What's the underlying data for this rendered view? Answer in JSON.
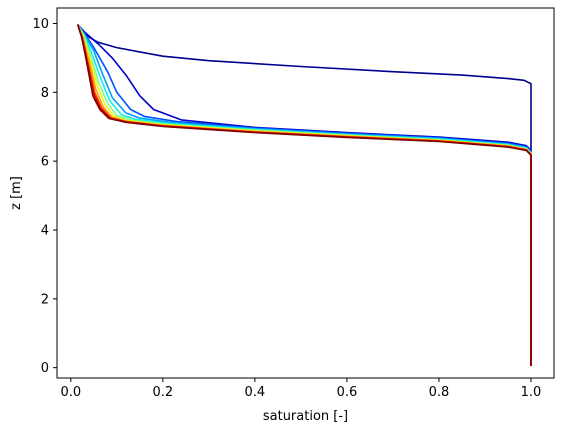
{
  "chart_data": {
    "type": "line",
    "title": "",
    "xlabel": "saturation [-]",
    "ylabel": "z [m]",
    "xlim": [
      -0.03,
      1.05
    ],
    "ylim": [
      -0.3,
      10.45
    ],
    "xticks": [
      0.0,
      0.2,
      0.4,
      0.6,
      0.8,
      1.0
    ],
    "xtick_labels": [
      "0.0",
      "0.2",
      "0.4",
      "0.6",
      "0.8",
      "1.0"
    ],
    "yticks": [
      0,
      2,
      4,
      6,
      8,
      10
    ],
    "ytick_labels": [
      "0",
      "2",
      "4",
      "6",
      "8",
      "10"
    ],
    "grid": false,
    "legend": "none",
    "colormap": "jet",
    "series": [
      {
        "color": "#00008f",
        "x": [
          0.015,
          0.025,
          0.04,
          0.06,
          0.1,
          0.2,
          0.3,
          0.5,
          0.7,
          0.85,
          0.95,
          0.985,
          1.0,
          1.0,
          1.0
        ],
        "y": [
          9.97,
          9.8,
          9.6,
          9.45,
          9.3,
          9.05,
          8.92,
          8.75,
          8.6,
          8.5,
          8.4,
          8.35,
          8.25,
          6.3,
          0.05
        ]
      },
      {
        "color": "#0000d0",
        "x": [
          0.015,
          0.03,
          0.06,
          0.09,
          0.12,
          0.15,
          0.18,
          0.24,
          0.4,
          0.6,
          0.8,
          0.95,
          0.99,
          1.0,
          1.0
        ],
        "y": [
          9.97,
          9.75,
          9.4,
          9.0,
          8.5,
          7.9,
          7.5,
          7.2,
          6.98,
          6.83,
          6.7,
          6.55,
          6.45,
          6.3,
          0.05
        ]
      },
      {
        "color": "#0050ff",
        "x": [
          0.015,
          0.03,
          0.05,
          0.08,
          0.1,
          0.13,
          0.16,
          0.23,
          0.4,
          0.6,
          0.8,
          0.95,
          0.99,
          1.0,
          1.0
        ],
        "y": [
          9.97,
          9.7,
          9.3,
          8.6,
          8.0,
          7.5,
          7.3,
          7.15,
          6.96,
          6.81,
          6.68,
          6.52,
          6.42,
          6.28,
          0.05
        ]
      },
      {
        "color": "#00a0ff",
        "x": [
          0.015,
          0.03,
          0.05,
          0.07,
          0.09,
          0.12,
          0.15,
          0.22,
          0.4,
          0.6,
          0.8,
          0.95,
          0.99,
          1.0,
          1.0
        ],
        "y": [
          9.97,
          9.68,
          9.2,
          8.5,
          7.85,
          7.4,
          7.25,
          7.12,
          6.94,
          6.79,
          6.66,
          6.5,
          6.4,
          6.26,
          0.05
        ]
      },
      {
        "color": "#10f0e0",
        "x": [
          0.015,
          0.03,
          0.045,
          0.065,
          0.085,
          0.11,
          0.14,
          0.21,
          0.4,
          0.6,
          0.8,
          0.95,
          0.99,
          1.0,
          1.0
        ],
        "y": [
          9.97,
          9.65,
          9.15,
          8.4,
          7.75,
          7.35,
          7.22,
          7.1,
          6.92,
          6.77,
          6.64,
          6.48,
          6.38,
          6.24,
          0.05
        ]
      },
      {
        "color": "#80ff80",
        "x": [
          0.015,
          0.028,
          0.042,
          0.06,
          0.08,
          0.1,
          0.13,
          0.2,
          0.4,
          0.6,
          0.8,
          0.95,
          0.99,
          1.0,
          1.0
        ],
        "y": [
          9.97,
          9.63,
          9.1,
          8.3,
          7.68,
          7.32,
          7.2,
          7.08,
          6.9,
          6.75,
          6.62,
          6.46,
          6.36,
          6.22,
          0.05
        ]
      },
      {
        "color": "#f0f010",
        "x": [
          0.015,
          0.027,
          0.04,
          0.057,
          0.075,
          0.095,
          0.12,
          0.2,
          0.4,
          0.6,
          0.8,
          0.95,
          0.99,
          1.0,
          1.0
        ],
        "y": [
          9.97,
          9.62,
          9.05,
          8.2,
          7.62,
          7.3,
          7.18,
          7.06,
          6.88,
          6.74,
          6.61,
          6.45,
          6.35,
          6.21,
          0.05
        ]
      },
      {
        "color": "#ffa000",
        "x": [
          0.015,
          0.026,
          0.038,
          0.054,
          0.07,
          0.09,
          0.12,
          0.2,
          0.4,
          0.6,
          0.8,
          0.95,
          0.99,
          1.0,
          1.0
        ],
        "y": [
          9.97,
          9.6,
          9.0,
          8.1,
          7.58,
          7.28,
          7.16,
          7.04,
          6.86,
          6.72,
          6.6,
          6.44,
          6.34,
          6.2,
          0.05
        ]
      },
      {
        "color": "#ff4000",
        "x": [
          0.015,
          0.025,
          0.036,
          0.052,
          0.067,
          0.087,
          0.12,
          0.2,
          0.4,
          0.6,
          0.8,
          0.95,
          0.99,
          1.0,
          1.0
        ],
        "y": [
          9.97,
          9.6,
          8.95,
          8.0,
          7.55,
          7.26,
          7.15,
          7.03,
          6.85,
          6.71,
          6.59,
          6.43,
          6.33,
          6.19,
          0.05
        ]
      },
      {
        "color": "#d00000",
        "x": [
          0.015,
          0.025,
          0.035,
          0.05,
          0.065,
          0.085,
          0.12,
          0.2,
          0.4,
          0.6,
          0.8,
          0.95,
          0.99,
          1.0,
          1.0
        ],
        "y": [
          9.97,
          9.58,
          8.92,
          7.95,
          7.52,
          7.25,
          7.14,
          7.02,
          6.84,
          6.7,
          6.58,
          6.42,
          6.32,
          6.18,
          0.05
        ]
      },
      {
        "color": "#800000",
        "x": [
          0.015,
          0.024,
          0.034,
          0.048,
          0.063,
          0.083,
          0.12,
          0.2,
          0.4,
          0.6,
          0.8,
          0.95,
          0.99,
          1.0,
          1.0
        ],
        "y": [
          9.97,
          9.58,
          8.9,
          7.9,
          7.5,
          7.24,
          7.13,
          7.01,
          6.83,
          6.69,
          6.57,
          6.41,
          6.31,
          6.17,
          0.05
        ]
      }
    ]
  }
}
